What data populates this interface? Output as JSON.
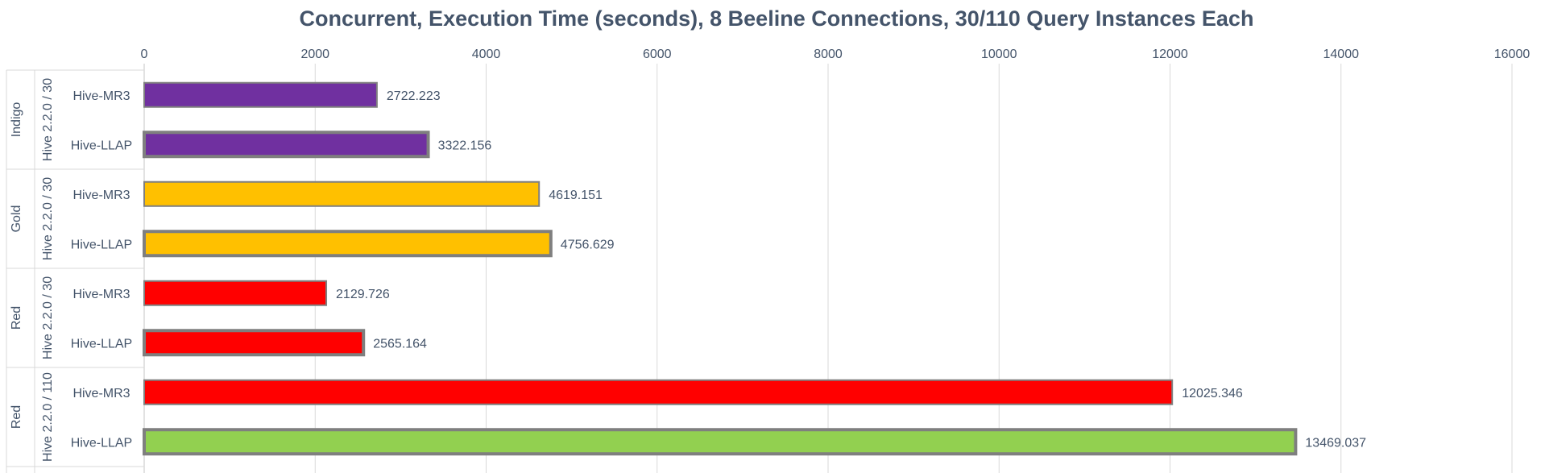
{
  "chart_data": {
    "type": "bar",
    "orientation": "horizontal",
    "title": "Concurrent, Execution Time (seconds), 8 Beeline Connections, 30/110 Query Instances Each",
    "xlim": [
      0,
      16000
    ],
    "x_ticks": [
      "0",
      "2000",
      "4000",
      "6000",
      "8000",
      "10000",
      "12000",
      "14000",
      "16000"
    ],
    "x_tick_values": [
      0,
      2000,
      4000,
      6000,
      8000,
      10000,
      12000,
      14000,
      16000
    ],
    "x_axis_position": "top",
    "grid": true,
    "groups": [
      {
        "cluster": "Indigo",
        "config": "Hive 2.2.0 / 30",
        "bars": [
          {
            "label": "Hive-MR3",
            "value": 2722.223,
            "value_label": "2722.223",
            "color": "#7030A0",
            "thick_border": false
          },
          {
            "label": "Hive-LLAP",
            "value": 3322.156,
            "value_label": "3322.156",
            "color": "#7030A0",
            "thick_border": true
          }
        ]
      },
      {
        "cluster": "Gold",
        "config": "Hive 2.2.0 / 30",
        "bars": [
          {
            "label": "Hive-MR3",
            "value": 4619.151,
            "value_label": "4619.151",
            "color": "#FFC000",
            "thick_border": false
          },
          {
            "label": "Hive-LLAP",
            "value": 4756.629,
            "value_label": "4756.629",
            "color": "#FFC000",
            "thick_border": true
          }
        ]
      },
      {
        "cluster": "Red",
        "config": "Hive 2.2.0 / 30",
        "bars": [
          {
            "label": "Hive-MR3",
            "value": 2129.726,
            "value_label": "2129.726",
            "color": "#FF0000",
            "thick_border": false
          },
          {
            "label": "Hive-LLAP",
            "value": 2565.164,
            "value_label": "2565.164",
            "color": "#FF0000",
            "thick_border": true
          }
        ]
      },
      {
        "cluster": "Red",
        "config": "Hive 2.2.0 / 110",
        "bars": [
          {
            "label": "Hive-MR3",
            "value": 12025.346,
            "value_label": "12025.346",
            "color": "#FF0000",
            "thick_border": false
          },
          {
            "label": "Hive-LLAP",
            "value": 13469.037,
            "value_label": "13469.037",
            "color": "#92D050",
            "thick_border": true
          }
        ]
      }
    ]
  },
  "colors": {
    "text": "#44546A",
    "grid": "#D9D9D9",
    "bar_border": "#7F7F7F"
  }
}
